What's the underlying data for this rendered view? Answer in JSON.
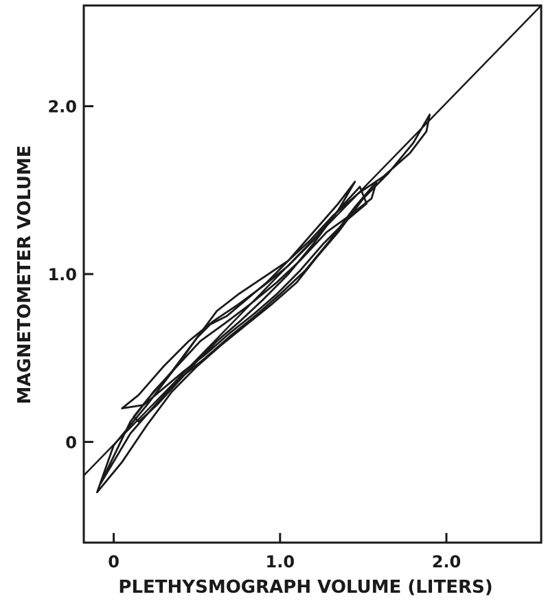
{
  "chart_data": {
    "type": "line",
    "title": "",
    "xlabel": "PLETHYSMOGRAPH VOLUME (LITERS)",
    "ylabel": "MAGNETOMETER VOLUME",
    "xlim": [
      -0.18,
      2.57
    ],
    "ylim": [
      -0.6,
      2.6
    ],
    "x_ticks": [
      {
        "value": 0,
        "label": "0"
      },
      {
        "value": 1.0,
        "label": "1.0"
      },
      {
        "value": 2.0,
        "label": "2.0"
      }
    ],
    "y_ticks": [
      {
        "value": 0,
        "label": "0"
      },
      {
        "value": 1.0,
        "label": "1.0"
      },
      {
        "value": 2.0,
        "label": "2.0"
      }
    ],
    "identity_line": {
      "x": [
        -0.18,
        2.57
      ],
      "y": [
        -0.2,
        2.6
      ]
    },
    "loops": [
      {
        "x": [
          -0.1,
          0.05,
          0.2,
          0.35,
          0.5,
          0.65,
          0.8,
          0.95,
          1.1,
          1.22,
          1.35,
          1.5,
          1.65,
          1.8,
          1.9,
          1.88,
          1.78,
          1.62,
          1.47,
          1.32,
          1.18,
          1.05,
          0.92,
          0.8,
          0.68,
          0.58,
          0.5,
          0.4,
          0.3,
          0.2,
          0.1,
          0.0,
          -0.1
        ],
        "y": [
          -0.3,
          -0.12,
          0.1,
          0.3,
          0.45,
          0.58,
          0.7,
          0.82,
          0.95,
          1.1,
          1.25,
          1.45,
          1.6,
          1.78,
          1.95,
          1.85,
          1.72,
          1.58,
          1.48,
          1.35,
          1.2,
          1.08,
          0.95,
          0.85,
          0.75,
          0.7,
          0.62,
          0.48,
          0.35,
          0.22,
          0.1,
          -0.02,
          -0.3
        ]
      },
      {
        "x": [
          -0.08,
          0.1,
          0.25,
          0.4,
          0.55,
          0.7,
          0.85,
          1.0,
          1.15,
          1.3,
          1.45,
          1.58,
          1.55,
          1.42,
          1.28,
          1.12,
          0.98,
          0.82,
          0.66,
          0.52,
          0.38,
          0.24,
          0.1,
          -0.08
        ],
        "y": [
          -0.25,
          0.05,
          0.22,
          0.38,
          0.5,
          0.63,
          0.75,
          0.88,
          1.02,
          1.2,
          1.4,
          1.55,
          1.45,
          1.35,
          1.25,
          1.08,
          0.95,
          0.82,
          0.7,
          0.6,
          0.45,
          0.3,
          0.12,
          -0.25
        ]
      },
      {
        "x": [
          0.05,
          0.15,
          0.3,
          0.45,
          0.6,
          0.75,
          0.9,
          1.05,
          1.2,
          1.35,
          1.48,
          1.52,
          1.4,
          1.26,
          1.12,
          0.98,
          0.84,
          0.7,
          0.55,
          0.42,
          0.3,
          0.18,
          0.05
        ],
        "y": [
          0.2,
          0.28,
          0.45,
          0.6,
          0.72,
          0.82,
          0.93,
          1.05,
          1.2,
          1.38,
          1.52,
          1.42,
          1.32,
          1.18,
          1.02,
          0.88,
          0.76,
          0.65,
          0.52,
          0.42,
          0.32,
          0.22,
          0.2
        ]
      },
      {
        "x": [
          0.12,
          0.2,
          0.35,
          0.5,
          0.62,
          0.75,
          0.9,
          1.05,
          1.2,
          1.35,
          1.45,
          1.35,
          1.2,
          1.05,
          0.9,
          0.76,
          0.62,
          0.5,
          0.38,
          0.26,
          0.15,
          0.12
        ],
        "y": [
          0.15,
          0.25,
          0.42,
          0.62,
          0.78,
          0.88,
          0.98,
          1.08,
          1.25,
          1.42,
          1.55,
          1.38,
          1.18,
          1.0,
          0.85,
          0.72,
          0.6,
          0.48,
          0.35,
          0.22,
          0.12,
          0.15
        ]
      }
    ]
  }
}
